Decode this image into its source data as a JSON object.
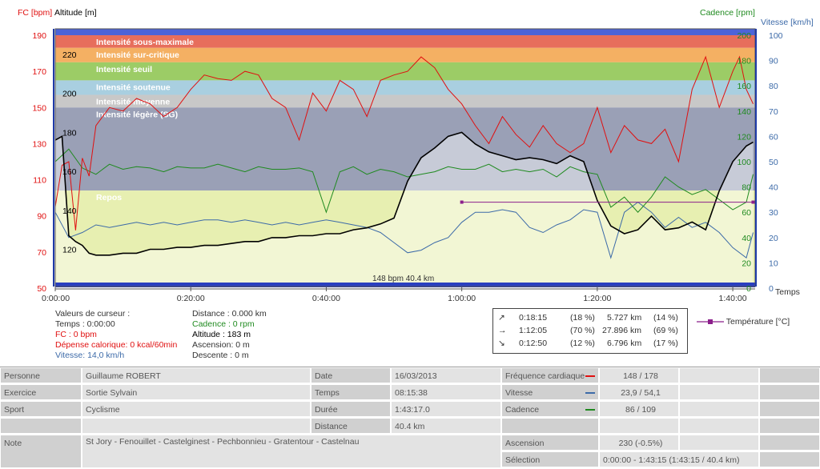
{
  "chart_data": {
    "type": "line",
    "axis_titles": {
      "fc": "FC [bpm]",
      "altitude": "Altitude  [m]",
      "cadence": "Cadence [rpm]",
      "vitesse": "Vitesse [km/h]",
      "temps": "Temps"
    },
    "fc_ticks": [
      "190",
      "170",
      "150",
      "130",
      "110",
      "90",
      "70",
      "50"
    ],
    "altitude_ticks": [
      "220",
      "200",
      "180",
      "160",
      "140",
      "120"
    ],
    "cadence_ticks": [
      "200",
      "180",
      "160",
      "140",
      "120",
      "100",
      "80",
      "60",
      "40",
      "20",
      "0"
    ],
    "vitesse_ticks": [
      "100",
      "90",
      "80",
      "70",
      "60",
      "50",
      "40",
      "30",
      "20",
      "10",
      "0"
    ],
    "time_ticks": [
      "0:00:00",
      "0:20:00",
      "0:40:00",
      "1:00:00",
      "1:20:00",
      "1:40:00"
    ],
    "xlim_minutes": [
      0,
      103.3
    ],
    "fc_ylim": [
      50,
      193
    ],
    "zones": [
      {
        "label": "Intensité sous-maximale",
        "from": 183,
        "to": 190,
        "color": "#e76e5c"
      },
      {
        "label": "Intensité sur-critique",
        "from": 175,
        "to": 183,
        "color": "#f4b063"
      },
      {
        "label": "Intensité seuil",
        "from": 165,
        "to": 175,
        "color": "#9ccc66"
      },
      {
        "label": "Intensité soutenue",
        "from": 157,
        "to": 165,
        "color": "#a9cfe0"
      },
      {
        "label": "Intensité moyenne",
        "from": 150,
        "to": 157,
        "color": "#c8c8c8"
      },
      {
        "label": "Intensité légère (SG)",
        "from": 104,
        "to": 150,
        "color": "#9aa0b6"
      },
      {
        "label": "Repos",
        "from": 50,
        "to": 104,
        "color": "#e7efb1"
      }
    ],
    "series": [
      {
        "name": "FC",
        "color": "#e01010",
        "x": [
          0,
          1,
          2,
          3,
          4,
          5,
          6,
          8,
          10,
          12,
          14,
          16,
          18,
          20,
          22,
          24,
          26,
          28,
          30,
          32,
          34,
          36,
          38,
          40,
          42,
          44,
          46,
          48,
          50,
          52,
          54,
          56,
          58,
          60,
          62,
          64,
          66,
          68,
          70,
          72,
          74,
          76,
          78,
          80,
          82,
          84,
          86,
          88,
          90,
          92,
          94,
          96,
          98,
          100,
          101,
          102,
          103
        ],
        "y": [
          95,
          118,
          120,
          82,
          122,
          112,
          140,
          150,
          148,
          155,
          152,
          145,
          150,
          160,
          168,
          166,
          165,
          170,
          168,
          155,
          150,
          132,
          158,
          148,
          165,
          160,
          145,
          165,
          168,
          170,
          178,
          172,
          160,
          152,
          140,
          130,
          145,
          135,
          128,
          140,
          130,
          125,
          130,
          150,
          125,
          140,
          132,
          130,
          138,
          120,
          160,
          178,
          150,
          170,
          178,
          160,
          152
        ]
      },
      {
        "name": "Altitude",
        "color": "#000000",
        "x": [
          0,
          1,
          2,
          3,
          4,
          5,
          6,
          8,
          10,
          12,
          14,
          16,
          18,
          20,
          22,
          24,
          26,
          28,
          30,
          32,
          34,
          36,
          38,
          40,
          42,
          44,
          46,
          48,
          50,
          52,
          54,
          56,
          58,
          60,
          62,
          64,
          66,
          68,
          70,
          72,
          74,
          76,
          78,
          80,
          82,
          84,
          86,
          88,
          90,
          92,
          94,
          96,
          98,
          100,
          102,
          103
        ],
        "y": [
          176,
          178,
          127,
          124,
          122,
          118,
          117,
          117,
          118,
          118,
          120,
          120,
          121,
          121,
          122,
          122,
          123,
          124,
          124,
          126,
          126,
          127,
          127,
          128,
          128,
          130,
          131,
          133,
          136,
          155,
          167,
          172,
          178,
          180,
          174,
          170,
          168,
          166,
          167,
          166,
          164,
          168,
          165,
          145,
          132,
          128,
          130,
          137,
          130,
          131,
          134,
          130,
          150,
          165,
          173,
          175
        ]
      },
      {
        "name": "Cadence",
        "color": "#1f8a1f",
        "x": [
          0,
          2,
          4,
          6,
          8,
          10,
          12,
          14,
          16,
          18,
          20,
          22,
          24,
          26,
          28,
          30,
          32,
          34,
          36,
          38,
          40,
          42,
          44,
          46,
          48,
          50,
          52,
          54,
          56,
          58,
          60,
          62,
          64,
          66,
          68,
          70,
          72,
          74,
          76,
          78,
          80,
          82,
          84,
          86,
          88,
          90,
          92,
          94,
          96,
          98,
          100,
          102,
          103
        ],
        "y": [
          100,
          110,
          95,
          90,
          98,
          94,
          96,
          95,
          92,
          96,
          95,
          95,
          98,
          95,
          92,
          96,
          94,
          94,
          95,
          92,
          60,
          92,
          96,
          90,
          94,
          92,
          88,
          90,
          92,
          96,
          94,
          94,
          98,
          92,
          94,
          92,
          94,
          88,
          96,
          92,
          90,
          64,
          72,
          60,
          72,
          88,
          80,
          74,
          78,
          70,
          62,
          68,
          90
        ]
      },
      {
        "name": "Vitesse",
        "color": "#3c6aa8",
        "x": [
          0,
          2,
          4,
          6,
          8,
          10,
          12,
          14,
          16,
          18,
          20,
          22,
          24,
          26,
          28,
          30,
          32,
          34,
          36,
          38,
          40,
          42,
          44,
          46,
          48,
          50,
          52,
          54,
          56,
          58,
          60,
          62,
          64,
          66,
          68,
          70,
          72,
          74,
          76,
          78,
          80,
          82,
          84,
          86,
          88,
          90,
          92,
          94,
          96,
          98,
          100,
          102,
          103
        ],
        "y": [
          30,
          20,
          22,
          25,
          24,
          25,
          26,
          25,
          26,
          25,
          26,
          27,
          27,
          26,
          27,
          26,
          25,
          26,
          25,
          26,
          27,
          26,
          25,
          24,
          22,
          18,
          14,
          15,
          18,
          20,
          26,
          30,
          30,
          31,
          30,
          24,
          22,
          25,
          27,
          31,
          30,
          12,
          30,
          34,
          30,
          24,
          28,
          24,
          26,
          22,
          16,
          12,
          22
        ]
      },
      {
        "name": "Température",
        "color": "#8b1f8b",
        "x": [
          60,
          103
        ],
        "y": [
          34,
          34
        ]
      }
    ],
    "cursor_label": "148 bpm 40.4 km"
  },
  "cursor_values": {
    "heading": "Valeurs de curseur :",
    "temps": "Temps : 0:00:00",
    "fc": "FC : 0 bpm",
    "depense": "Dépense calorique: 0 kcal/60min",
    "vitesse": "Vitesse: 14,0 km/h",
    "distance": "Distance : 0.000 km",
    "cadence": "Cadence : 0 rpm",
    "altitude": "Altitude : 183 m",
    "ascension": "Ascension: 0 m",
    "descente": "Descente : 0 m"
  },
  "summary": [
    {
      "icon": "↗",
      "time": "0:18:15",
      "pct_time": "(18 %)",
      "dist": "5.727 km",
      "pct_dist": "(14 %)"
    },
    {
      "icon": "→",
      "time": "1:12:05",
      "pct_time": "(70 %)",
      "dist": "27.896 km",
      "pct_dist": "(69 %)"
    },
    {
      "icon": "↘",
      "time": "0:12:50",
      "pct_time": "(12 %)",
      "dist": "6.796 km",
      "pct_dist": "(17 %)"
    }
  ],
  "legend_temp": "Température [°C]",
  "table": {
    "personne_label": "Personne",
    "personne": "Guillaume ROBERT",
    "exercice_label": "Exercice",
    "exercice": "Sortie Sylvain",
    "sport_label": "Sport",
    "sport": "Cyclisme",
    "note_label": "Note",
    "note": "St Jory - Fenouillet - Castelginest - Pechbonnieu - Gratentour - Castelnau",
    "date_label": "Date",
    "date": "16/03/2013",
    "temps_label": "Temps",
    "temps": "08:15:38",
    "duree_label": "Durée",
    "duree": "1:43:17.0",
    "distance_label": "Distance",
    "distance": "40.4 km",
    "fc_label": "Fréquence cardiaque",
    "fc": "148 / 178",
    "vitesse_label": "Vitesse",
    "vitesse": "23,9 / 54,1",
    "cadence_label": "Cadence",
    "cadence": "86 / 109",
    "ascension_label": "Ascension",
    "ascension": "230 (-0.5%)",
    "selection_label": "Sélection",
    "selection": "0:00:00 - 1:43:15 (1:43:15 / 40.4 km)"
  },
  "colors": {
    "fc": "#e01010",
    "altitude": "#000000",
    "cadence": "#1f8a1f",
    "vitesse": "#3c6aa8",
    "temperature": "#8b1f8b",
    "axis_blue": "#1e3aa8"
  }
}
